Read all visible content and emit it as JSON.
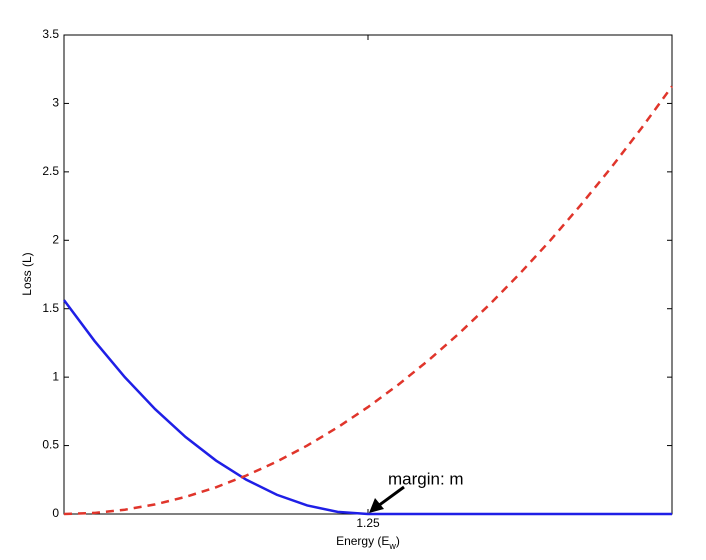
{
  "chart_data": {
    "type": "line",
    "xlabel": [
      "Energy (E",
      "w",
      ")"
    ],
    "ylabel": "Loss (L)",
    "annotation": {
      "text": "margin: m",
      "x": 1.25,
      "y": 0
    },
    "x": [
      0,
      0.125,
      0.25,
      0.375,
      0.5,
      0.625,
      0.75,
      0.875,
      1,
      1.125,
      1.25,
      1.375,
      1.5,
      1.625,
      1.75,
      1.875,
      2,
      2.125,
      2.25,
      2.375,
      2.5
    ],
    "series": [
      {
        "color": "#1f1fe6",
        "style": "solid",
        "values": [
          1.5625,
          1.265625,
          1,
          0.765625,
          0.5625,
          0.390625,
          0.25,
          0.140625,
          0.0625,
          0.015625,
          0,
          0,
          0,
          0,
          0,
          0,
          0,
          0,
          0,
          0,
          0
        ]
      },
      {
        "color": "#e0352b",
        "style": "dashed",
        "values": [
          0,
          0.0078125,
          0.03125,
          0.0703125,
          0.125,
          0.1953125,
          0.28125,
          0.3828125,
          0.5,
          0.6328125,
          0.78125,
          0.9453125,
          1.125,
          1.3203125,
          1.53125,
          1.7578125,
          2,
          2.2578125,
          2.53125,
          2.8203125,
          3.125
        ]
      }
    ],
    "xlim": [
      0,
      2.5
    ],
    "xticks": [
      1.25
    ],
    "ylim": [
      0,
      3.5
    ],
    "yticks": [
      0,
      0.5,
      1,
      1.5,
      2,
      2.5,
      3,
      3.5
    ],
    "grid": false
  }
}
